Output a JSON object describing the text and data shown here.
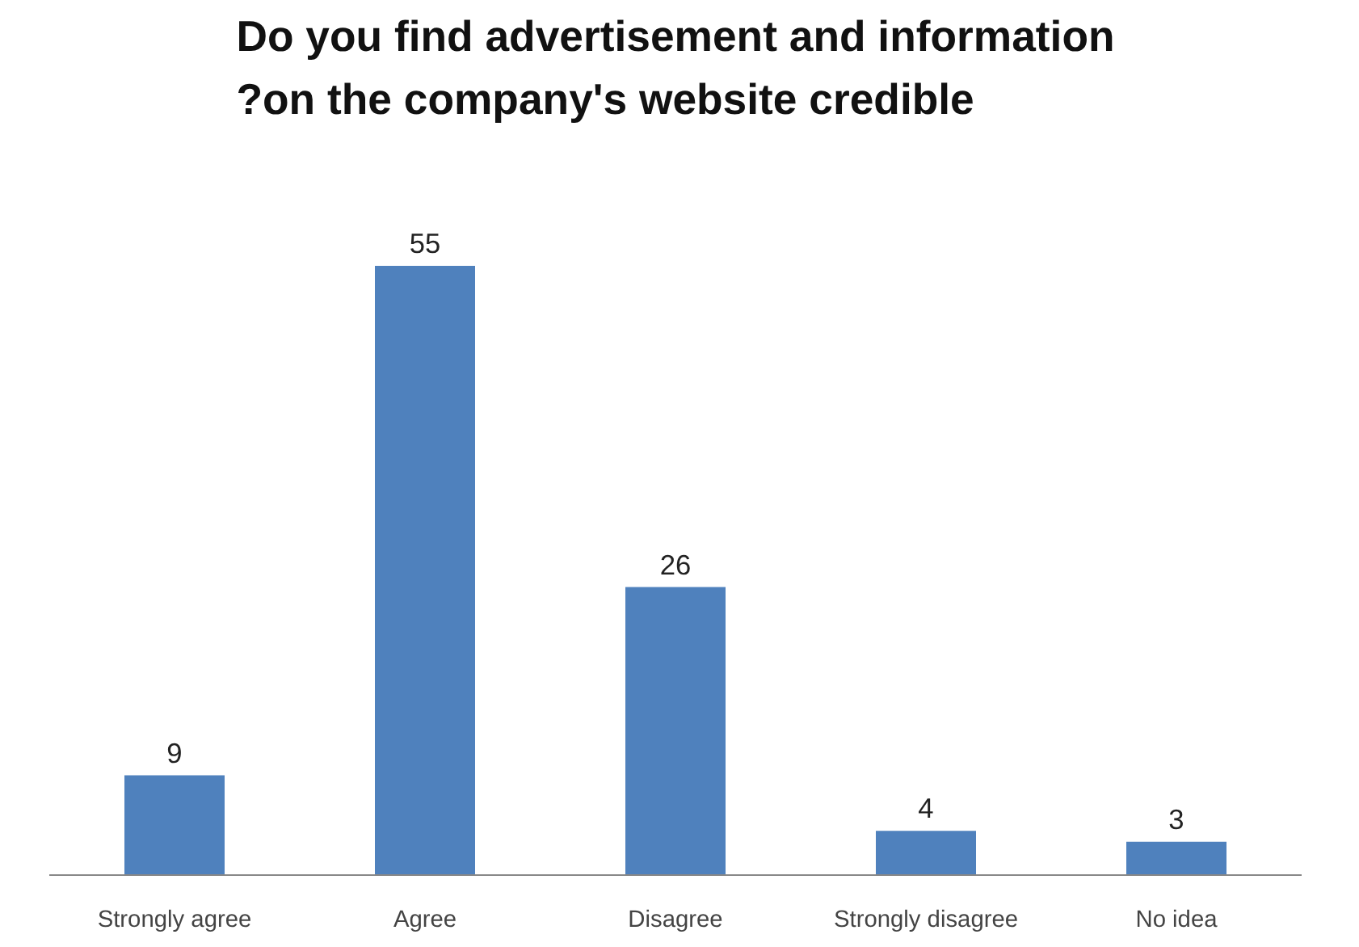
{
  "chart_data": {
    "type": "bar",
    "title": "Do you find advertisement and information\n?on the company's website credible",
    "categories": [
      "Strongly agree",
      "Agree",
      "Disagree",
      "Strongly disagree",
      "No idea"
    ],
    "values": [
      9,
      55,
      26,
      4,
      3
    ],
    "color": "#4f81bd",
    "data_labels": true,
    "grid": false
  }
}
